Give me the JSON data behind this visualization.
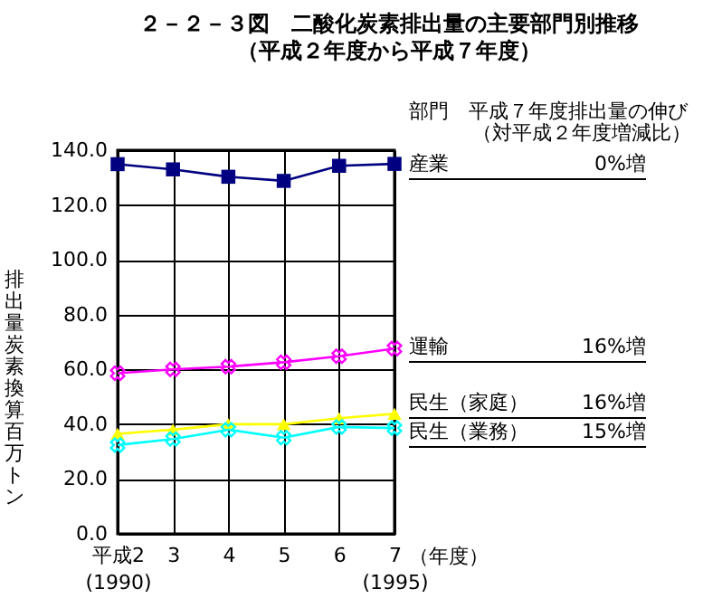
{
  "chart_data": {
    "type": "line",
    "title": "２－２－３図　二酸化炭素排出量の主要部門別推移",
    "subtitle": "（平成２年度から平成７年度）",
    "ylabel": "排出量炭素換算百万トン",
    "xlabel": "（年度）",
    "categories": [
      "平成2\n(1990)",
      "3",
      "4",
      "5",
      "6",
      "7\n(1995)"
    ],
    "series": [
      {
        "name": "産業",
        "color": "#000080",
        "marker": "square",
        "values": [
          134.9,
          133.0,
          130.3,
          128.8,
          134.3,
          135.0
        ]
      },
      {
        "name": "運輸",
        "color": "#ff00ff",
        "marker": "cross",
        "values": [
          58.6,
          60.0,
          61.0,
          62.6,
          64.8,
          67.6
        ]
      },
      {
        "name": "民生（家庭）",
        "color": "#ffff00",
        "marker": "triangle",
        "values": [
          36.5,
          38.0,
          40.0,
          40.0,
          42.2,
          43.8
        ]
      },
      {
        "name": "民生（業務）",
        "color": "#00ffff",
        "marker": "cross",
        "values": [
          32.4,
          34.6,
          38.0,
          35.1,
          39.0,
          38.6
        ]
      }
    ],
    "ylim": [
      0,
      140
    ],
    "yticks": [
      {
        "value": 0,
        "label": "0.0"
      },
      {
        "value": 20,
        "label": "20.0"
      },
      {
        "value": 40,
        "label": "40.0"
      },
      {
        "value": 60,
        "label": "60.0"
      },
      {
        "value": 80,
        "label": "80.0"
      },
      {
        "value": 100,
        "label": "100.0"
      },
      {
        "value": 120,
        "label": "120.0"
      },
      {
        "value": 140,
        "label": "140.0"
      }
    ],
    "grid": true,
    "legend": false,
    "line_style": "solid",
    "annotations": [
      "部門　平成７年度排出量の伸び",
      "（対平成２年度増減比）",
      "0%増",
      "16%増",
      "16%増",
      "15%増"
    ]
  }
}
